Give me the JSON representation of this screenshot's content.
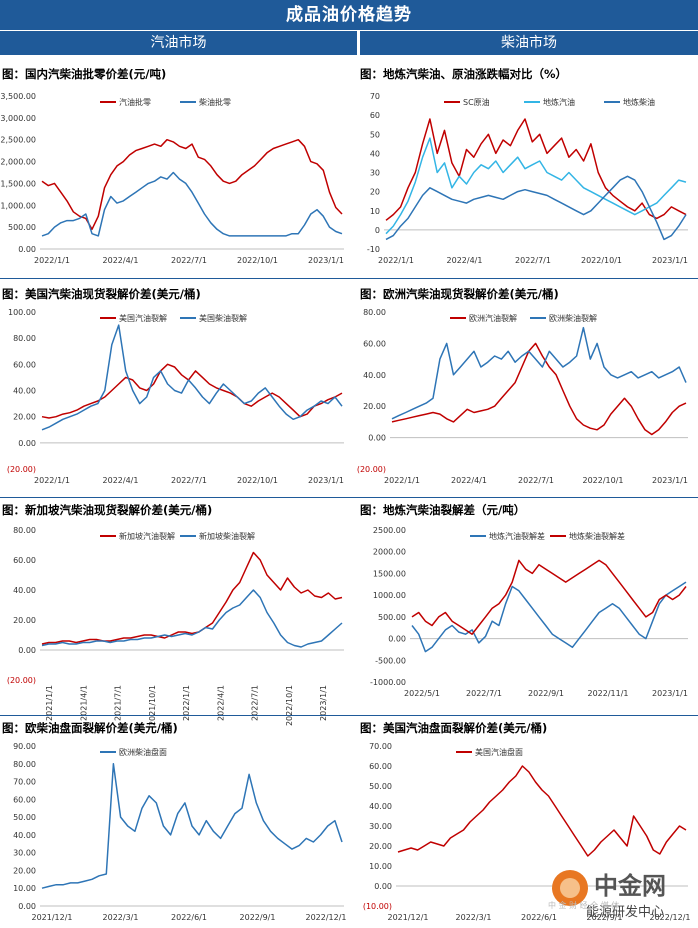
{
  "header": {
    "title": "成品油价格趋势",
    "left_section": "汽油市场",
    "right_section": "柴油市场"
  },
  "watermark": {
    "brand": "中金网",
    "sub": "能源研发中心",
    "faint": "中 金 财 经 全 媒 体"
  },
  "colors": {
    "red": "#c00000",
    "blue": "#2e75b6",
    "cyan": "#33b5e5",
    "header": "#1f5a99"
  },
  "chart_data": [
    {
      "id": "p1",
      "type": "line",
      "title": "图：国内汽柴油批零价差(元/吨)",
      "yticks": [
        "3,500.00",
        "3,000.00",
        "2,500.00",
        "2,000.00",
        "1,500.00",
        "1,000.00",
        "500.00",
        "0.00"
      ],
      "xticks": [
        "2022/1/1",
        "2022/4/1",
        "2022/7/1",
        "2022/10/1",
        "2023/1/1"
      ],
      "ylim": [
        0,
        3500
      ],
      "grid": false,
      "legend_position": "top",
      "series": [
        {
          "name": "汽油批零",
          "color": "#c00000",
          "values": [
            1550,
            1450,
            1500,
            1300,
            1100,
            850,
            750,
            700,
            450,
            750,
            1400,
            1700,
            1900,
            2000,
            2150,
            2250,
            2300,
            2350,
            2400,
            2350,
            2500,
            2450,
            2350,
            2300,
            2400,
            2100,
            2050,
            1900,
            1700,
            1550,
            1500,
            1550,
            1700,
            1800,
            1900,
            2050,
            2200,
            2300,
            2350,
            2400,
            2450,
            2500,
            2350,
            2000,
            1950,
            1800,
            1300,
            950,
            800
          ]
        },
        {
          "name": "柴油批零",
          "color": "#2e75b6",
          "values": [
            300,
            350,
            500,
            600,
            650,
            650,
            700,
            800,
            350,
            300,
            900,
            1200,
            1050,
            1100,
            1200,
            1300,
            1400,
            1500,
            1550,
            1650,
            1600,
            1750,
            1600,
            1500,
            1300,
            1050,
            800,
            600,
            450,
            350,
            300,
            300,
            300,
            300,
            300,
            300,
            300,
            300,
            300,
            300,
            350,
            350,
            550,
            800,
            900,
            750,
            500,
            400,
            350
          ]
        }
      ]
    },
    {
      "id": "p2",
      "type": "line",
      "title": "图：地炼汽柴油、原油涨跌幅对比（%）",
      "yticks": [
        "70",
        "60",
        "50",
        "40",
        "30",
        "20",
        "10",
        "0",
        "-10"
      ],
      "xticks": [
        "2022/1/1",
        "2022/4/1",
        "2022/7/1",
        "2022/10/1",
        "2023/1/1"
      ],
      "ylim": [
        -10,
        70
      ],
      "grid": false,
      "legend_position": "top",
      "series": [
        {
          "name": "SC原油",
          "color": "#c00000",
          "values": [
            5,
            8,
            12,
            22,
            30,
            45,
            58,
            40,
            52,
            35,
            28,
            42,
            38,
            45,
            50,
            40,
            47,
            44,
            52,
            58,
            46,
            50,
            40,
            44,
            48,
            38,
            42,
            36,
            45,
            30,
            22,
            18,
            15,
            12,
            10,
            14,
            8,
            6,
            8,
            12,
            10,
            8
          ]
        },
        {
          "name": "地炼汽油",
          "color": "#33b5e5",
          "values": [
            -2,
            2,
            8,
            15,
            25,
            38,
            48,
            30,
            35,
            22,
            28,
            24,
            30,
            34,
            32,
            36,
            30,
            34,
            38,
            32,
            34,
            36,
            30,
            28,
            26,
            30,
            26,
            22,
            20,
            18,
            16,
            14,
            12,
            10,
            8,
            10,
            12,
            14,
            18,
            22,
            26,
            25
          ]
        },
        {
          "name": "地炼柴油",
          "color": "#2e75b6",
          "values": [
            -5,
            -3,
            2,
            6,
            12,
            18,
            22,
            20,
            18,
            16,
            15,
            14,
            16,
            17,
            18,
            17,
            16,
            18,
            20,
            21,
            20,
            19,
            18,
            16,
            14,
            12,
            10,
            8,
            10,
            14,
            18,
            22,
            26,
            28,
            26,
            20,
            12,
            4,
            -5,
            -3,
            2,
            8
          ]
        }
      ]
    },
    {
      "id": "p3",
      "type": "line",
      "title": "图：美国汽柴油现货裂解价差(美元/桶)",
      "yticks": [
        "100.00",
        "80.00",
        "60.00",
        "40.00",
        "20.00",
        "0.00",
        "(20.00)"
      ],
      "xticks": [
        "2022/1/1",
        "2022/4/1",
        "2022/7/1",
        "2022/10/1",
        "2023/1/1"
      ],
      "ylim": [
        -20,
        100
      ],
      "grid": false,
      "legend_position": "top",
      "series": [
        {
          "name": "美国汽油裂解",
          "color": "#c00000",
          "values": [
            20,
            19,
            20,
            22,
            23,
            25,
            28,
            30,
            32,
            35,
            40,
            45,
            50,
            48,
            42,
            40,
            45,
            55,
            60,
            58,
            52,
            48,
            55,
            50,
            45,
            42,
            40,
            38,
            35,
            30,
            28,
            32,
            35,
            38,
            35,
            30,
            25,
            20,
            22,
            28,
            30,
            33,
            35,
            38
          ]
        },
        {
          "name": "美国柴油裂解",
          "color": "#2e75b6",
          "values": [
            10,
            12,
            15,
            18,
            20,
            22,
            25,
            28,
            30,
            40,
            75,
            90,
            55,
            40,
            30,
            35,
            50,
            55,
            45,
            40,
            38,
            48,
            42,
            35,
            30,
            38,
            45,
            40,
            35,
            30,
            32,
            38,
            42,
            35,
            28,
            22,
            18,
            20,
            25,
            28,
            32,
            30,
            35,
            28
          ]
        }
      ]
    },
    {
      "id": "p4",
      "type": "line",
      "title": "图：欧洲汽柴油现货裂解价差(美元/桶)",
      "yticks": [
        "80.00",
        "60.00",
        "40.00",
        "20.00",
        "0.00",
        "(20.00)"
      ],
      "xticks": [
        "2022/1/1",
        "2022/4/1",
        "2022/7/1",
        "2022/10/1",
        "2023/1/1"
      ],
      "ylim": [
        -20,
        80
      ],
      "grid": false,
      "legend_position": "top",
      "series": [
        {
          "name": "欧洲汽油裂解",
          "color": "#c00000",
          "values": [
            10,
            11,
            12,
            13,
            14,
            15,
            16,
            15,
            12,
            10,
            14,
            18,
            16,
            17,
            18,
            20,
            25,
            30,
            35,
            45,
            55,
            60,
            52,
            45,
            40,
            30,
            20,
            12,
            8,
            6,
            5,
            8,
            15,
            20,
            25,
            20,
            12,
            5,
            2,
            5,
            10,
            16,
            20,
            22
          ]
        },
        {
          "name": "欧洲柴油裂解",
          "color": "#2e75b6",
          "values": [
            12,
            14,
            16,
            18,
            20,
            22,
            25,
            50,
            60,
            40,
            45,
            50,
            55,
            45,
            48,
            52,
            50,
            55,
            48,
            52,
            55,
            50,
            45,
            55,
            50,
            45,
            48,
            52,
            70,
            50,
            60,
            45,
            40,
            38,
            40,
            42,
            38,
            40,
            42,
            38,
            40,
            42,
            45,
            35
          ]
        }
      ]
    },
    {
      "id": "p5",
      "type": "line",
      "title": "图：新加坡汽柴油现货裂解价差(美元/桶)",
      "yticks": [
        "80.00",
        "60.00",
        "40.00",
        "20.00",
        "0.00",
        "(20.00)"
      ],
      "xticks": [
        "2021/1/1",
        "2021/4/1",
        "2021/7/1",
        "2021/10/1",
        "2022/1/1",
        "2022/4/1",
        "2022/7/1",
        "2022/10/1",
        "2023/1/1"
      ],
      "ylim": [
        -20,
        80
      ],
      "grid": false,
      "legend_position": "top",
      "series": [
        {
          "name": "新加坡汽油裂解",
          "color": "#c00000",
          "values": [
            4,
            5,
            5,
            6,
            6,
            5,
            6,
            7,
            7,
            6,
            6,
            7,
            8,
            8,
            9,
            10,
            10,
            9,
            8,
            10,
            12,
            12,
            11,
            12,
            15,
            18,
            25,
            32,
            40,
            45,
            55,
            65,
            60,
            50,
            45,
            40,
            48,
            42,
            38,
            40,
            36,
            35,
            38,
            34,
            35
          ]
        },
        {
          "name": "新加坡柴油裂解",
          "color": "#2e75b6",
          "values": [
            3,
            4,
            4,
            5,
            4,
            4,
            5,
            5,
            6,
            6,
            5,
            6,
            6,
            7,
            7,
            8,
            8,
            9,
            10,
            9,
            10,
            11,
            10,
            12,
            15,
            14,
            20,
            25,
            28,
            30,
            35,
            40,
            35,
            25,
            18,
            10,
            5,
            3,
            2,
            4,
            5,
            6,
            10,
            14,
            18
          ]
        }
      ]
    },
    {
      "id": "p6",
      "type": "line",
      "title": "图：地炼汽柴油裂解差（元/吨）",
      "yticks": [
        "2500.00",
        "2000.00",
        "1500.00",
        "1000.00",
        "500.00",
        "0.00",
        "-500.00",
        "-1000.00"
      ],
      "xticks": [
        "2022/5/1",
        "2022/7/1",
        "2022/9/1",
        "2022/11/1",
        "2023/1/1"
      ],
      "ylim": [
        -1000,
        2500
      ],
      "grid": false,
      "legend_position": "top",
      "series": [
        {
          "name": "地炼汽油裂解差",
          "color": "#2e75b6",
          "values": [
            300,
            100,
            -300,
            -200,
            0,
            200,
            300,
            150,
            100,
            200,
            -100,
            50,
            400,
            300,
            800,
            1200,
            1100,
            900,
            700,
            500,
            300,
            100,
            0,
            -100,
            -200,
            0,
            200,
            400,
            600,
            700,
            800,
            700,
            500,
            300,
            100,
            0,
            400,
            800,
            1000,
            1100,
            1200,
            1300
          ]
        },
        {
          "name": "地炼柴油裂解差",
          "color": "#c00000",
          "values": [
            500,
            600,
            400,
            300,
            500,
            600,
            400,
            300,
            200,
            100,
            300,
            500,
            700,
            800,
            1000,
            1300,
            1800,
            1600,
            1500,
            1700,
            1600,
            1500,
            1400,
            1300,
            1400,
            1500,
            1600,
            1700,
            1800,
            1700,
            1500,
            1300,
            1100,
            900,
            700,
            500,
            600,
            900,
            1000,
            900,
            1000,
            1200
          ]
        }
      ]
    },
    {
      "id": "p7",
      "type": "line",
      "title": "图：欧柴油盘面裂解价差(美元/桶)",
      "yticks": [
        "90.00",
        "80.00",
        "70.00",
        "60.00",
        "50.00",
        "40.00",
        "30.00",
        "20.00",
        "10.00",
        "0.00"
      ],
      "xticks": [
        "2021/12/1",
        "2022/3/1",
        "2022/6/1",
        "2022/9/1",
        "2022/12/1"
      ],
      "ylim": [
        0,
        90
      ],
      "grid": false,
      "legend_position": "top",
      "series": [
        {
          "name": "欧洲柴油盘面",
          "color": "#2e75b6",
          "values": [
            10,
            11,
            12,
            12,
            13,
            13,
            14,
            15,
            17,
            18,
            80,
            50,
            45,
            42,
            55,
            62,
            58,
            45,
            40,
            52,
            58,
            45,
            40,
            48,
            42,
            38,
            45,
            52,
            55,
            74,
            58,
            48,
            42,
            38,
            35,
            32,
            34,
            38,
            36,
            40,
            45,
            48,
            36
          ]
        }
      ]
    },
    {
      "id": "p8",
      "type": "line",
      "title": "图：美国汽油盘面裂解价差(美元/桶)",
      "yticks": [
        "70.00",
        "60.00",
        "50.00",
        "40.00",
        "30.00",
        "20.00",
        "10.00",
        "0.00",
        "(10.00)"
      ],
      "xticks": [
        "2021/12/1",
        "2022/3/1",
        "2022/6/1",
        "2022/9/1",
        "2022/12/1"
      ],
      "ylim": [
        -10,
        70
      ],
      "grid": false,
      "legend_position": "top",
      "series": [
        {
          "name": "美国汽油盘面",
          "color": "#c00000",
          "values": [
            17,
            18,
            19,
            18,
            20,
            22,
            21,
            20,
            24,
            26,
            28,
            32,
            35,
            38,
            42,
            45,
            48,
            52,
            55,
            60,
            57,
            52,
            48,
            45,
            40,
            35,
            30,
            25,
            20,
            15,
            18,
            22,
            25,
            28,
            24,
            20,
            35,
            30,
            25,
            18,
            16,
            22,
            26,
            30,
            28
          ]
        }
      ]
    }
  ]
}
